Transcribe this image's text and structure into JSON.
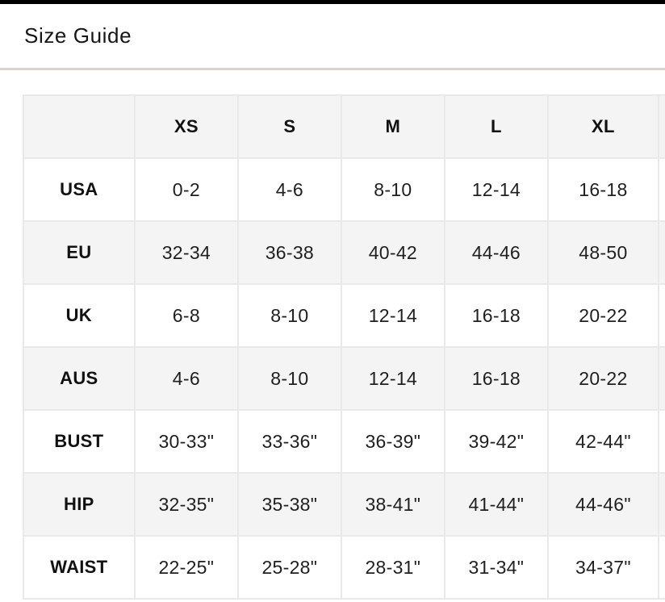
{
  "page": {
    "title": "Size Guide"
  },
  "colors": {
    "top_bar": "#000000",
    "divider": "#d9d3c8",
    "stripe": "#f4f4f4",
    "border": "#e9e9e9",
    "text": "#161616"
  },
  "size_table": {
    "columns": [
      "",
      "XS",
      "S",
      "M",
      "L",
      "XL"
    ],
    "rows": [
      {
        "label": "USA",
        "values": [
          "0-2",
          "4-6",
          "8-10",
          "12-14",
          "16-18"
        ]
      },
      {
        "label": "EU",
        "values": [
          "32-34",
          "36-38",
          "40-42",
          "44-46",
          "48-50"
        ]
      },
      {
        "label": "UK",
        "values": [
          "6-8",
          "8-10",
          "12-14",
          "16-18",
          "20-22"
        ]
      },
      {
        "label": "AUS",
        "values": [
          "4-6",
          "8-10",
          "12-14",
          "16-18",
          "20-22"
        ]
      },
      {
        "label": "BUST",
        "values": [
          "30-33\"",
          "33-36\"",
          "36-39\"",
          "39-42\"",
          "42-44\""
        ]
      },
      {
        "label": "HIP",
        "values": [
          "32-35\"",
          "35-38\"",
          "38-41\"",
          "41-44\"",
          "44-46\""
        ]
      },
      {
        "label": "WAIST",
        "values": [
          "22-25\"",
          "25-28\"",
          "28-31\"",
          "31-34\"",
          "34-37\""
        ]
      }
    ]
  }
}
